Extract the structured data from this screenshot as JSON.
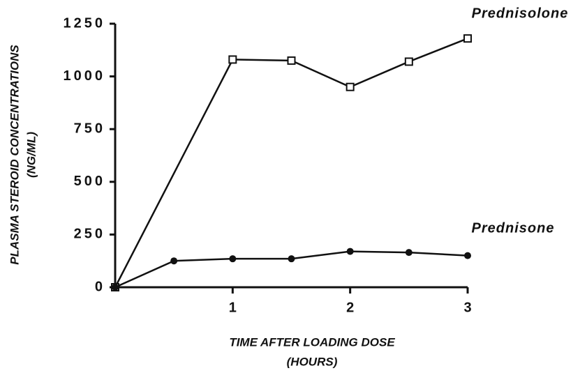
{
  "chart_data": {
    "type": "line",
    "xlabel": [
      "TIME AFTER LOADING DOSE",
      "(HOURS)"
    ],
    "ylabel": [
      "PLASMA STEROID CONCENTRATIONS",
      "(NG/ML)"
    ],
    "xlim": [
      0,
      3
    ],
    "xticks": [
      1,
      2,
      3
    ],
    "ylim": [
      0,
      1250
    ],
    "yticks": [
      0,
      250,
      500,
      750,
      1000,
      1250
    ],
    "grid": false,
    "series": [
      {
        "name": "Prednisolone",
        "color": "#111111",
        "marker": "square",
        "x": [
          0,
          1,
          1.5,
          2,
          2.5,
          3
        ],
        "values": [
          0,
          1080,
          1075,
          950,
          1070,
          1180
        ]
      },
      {
        "name": "Prednisone",
        "color": "#111111",
        "marker": "circle",
        "x": [
          0,
          0.5,
          1,
          1.5,
          2,
          2.5,
          3
        ],
        "values": [
          0,
          125,
          135,
          135,
          170,
          165,
          150
        ]
      }
    ]
  }
}
